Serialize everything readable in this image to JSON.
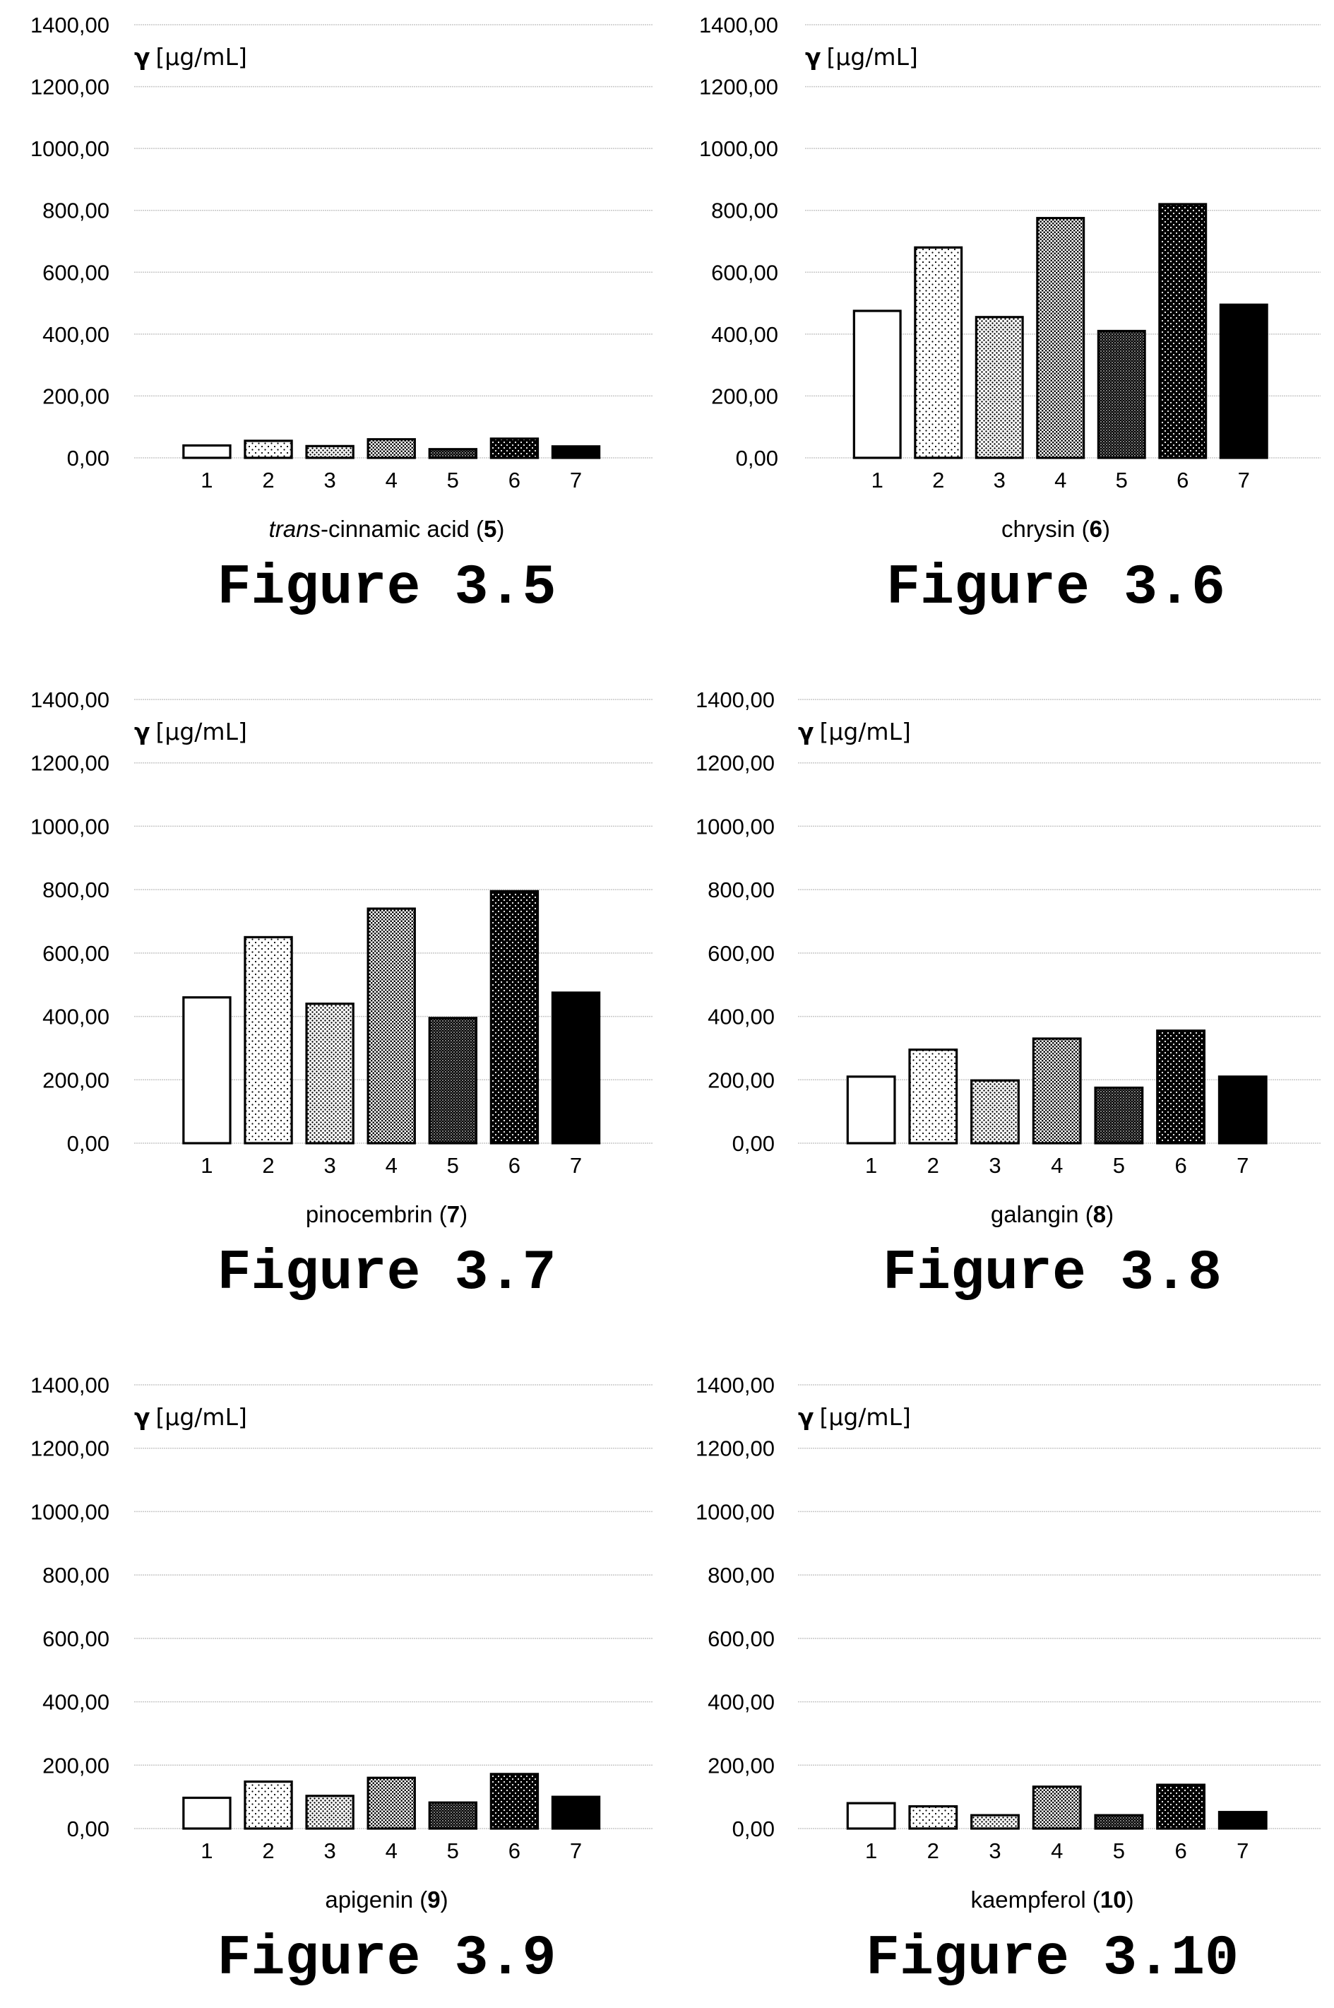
{
  "ylabel": "γ [µg/mL]",
  "ylabel_symbol": "γ",
  "ylabel_unit": "[µg/mL]",
  "patterns": [
    "white",
    "sparse-dots",
    "fine-dots",
    "dense-dots",
    "crosshatch-dark",
    "heavy-dots",
    "solid-black"
  ],
  "chart_data": [
    {
      "type": "bar",
      "figure_label": "Figure 3.5",
      "title_parts": [
        {
          "text": "trans",
          "style": "italic"
        },
        {
          "text": "-cinnamic acid (",
          "style": "normal"
        },
        {
          "text": "5",
          "style": "bold"
        },
        {
          "text": ")",
          "style": "normal"
        }
      ],
      "categories": [
        "1",
        "2",
        "3",
        "4",
        "5",
        "6",
        "7"
      ],
      "values": [
        40,
        55,
        38,
        60,
        28,
        62,
        37
      ],
      "yticks": [
        "0,00",
        "200,00",
        "400,00",
        "600,00",
        "800,00",
        "1000,00",
        "1200,00",
        "1400,00"
      ],
      "ylim": [
        0,
        1400
      ],
      "grid": true
    },
    {
      "type": "bar",
      "figure_label": "Figure 3.6",
      "title_parts": [
        {
          "text": "chrysin (",
          "style": "normal"
        },
        {
          "text": "6",
          "style": "bold"
        },
        {
          "text": ")",
          "style": "normal"
        }
      ],
      "categories": [
        "1",
        "2",
        "3",
        "4",
        "5",
        "6",
        "7"
      ],
      "values": [
        475,
        680,
        455,
        775,
        410,
        820,
        495
      ],
      "yticks": [
        "0,00",
        "200,00",
        "400,00",
        "600,00",
        "800,00",
        "1000,00",
        "1200,00",
        "1400,00"
      ],
      "ylim": [
        0,
        1400
      ],
      "grid": true
    },
    {
      "type": "bar",
      "figure_label": "Figure 3.7",
      "title_parts": [
        {
          "text": "pinocembrin (",
          "style": "normal"
        },
        {
          "text": "7",
          "style": "bold"
        },
        {
          "text": ")",
          "style": "normal"
        }
      ],
      "categories": [
        "1",
        "2",
        "3",
        "4",
        "5",
        "6",
        "7"
      ],
      "values": [
        460,
        650,
        440,
        740,
        395,
        795,
        475
      ],
      "yticks": [
        "0,00",
        "200,00",
        "400,00",
        "600,00",
        "800,00",
        "1000,00",
        "1200,00",
        "1400,00"
      ],
      "ylim": [
        0,
        1400
      ],
      "grid": true
    },
    {
      "type": "bar",
      "figure_label": "Figure 3.8",
      "title_parts": [
        {
          "text": "galangin (",
          "style": "normal"
        },
        {
          "text": "8",
          "style": "bold"
        },
        {
          "text": ")",
          "style": "normal"
        }
      ],
      "categories": [
        "1",
        "2",
        "3",
        "4",
        "5",
        "6",
        "7"
      ],
      "values": [
        210,
        295,
        198,
        330,
        175,
        355,
        210
      ],
      "yticks": [
        "0,00",
        "200,00",
        "400,00",
        "600,00",
        "800,00",
        "1000,00",
        "1200,00",
        "1400,00"
      ],
      "ylim": [
        0,
        1400
      ],
      "grid": true
    },
    {
      "type": "bar",
      "figure_label": "Figure 3.9",
      "title_parts": [
        {
          "text": "apigenin (",
          "style": "normal"
        },
        {
          "text": "9",
          "style": "bold"
        },
        {
          "text": ")",
          "style": "normal"
        }
      ],
      "categories": [
        "1",
        "2",
        "3",
        "4",
        "5",
        "6",
        "7"
      ],
      "values": [
        97,
        148,
        103,
        160,
        82,
        172,
        100
      ],
      "yticks": [
        "0,00",
        "200,00",
        "400,00",
        "600,00",
        "800,00",
        "1000,00",
        "1200,00",
        "1400,00"
      ],
      "ylim": [
        0,
        1400
      ],
      "grid": true
    },
    {
      "type": "bar",
      "figure_label": "Figure 3.10",
      "title_parts": [
        {
          "text": "kaempferol (",
          "style": "normal"
        },
        {
          "text": "10",
          "style": "bold"
        },
        {
          "text": ")",
          "style": "normal"
        }
      ],
      "categories": [
        "1",
        "2",
        "3",
        "4",
        "5",
        "6",
        "7"
      ],
      "values": [
        80,
        70,
        42,
        132,
        42,
        138,
        52
      ],
      "yticks": [
        "0,00",
        "200,00",
        "400,00",
        "600,00",
        "800,00",
        "1000,00",
        "1200,00",
        "1400,00"
      ],
      "ylim": [
        0,
        1400
      ],
      "grid": true
    }
  ]
}
